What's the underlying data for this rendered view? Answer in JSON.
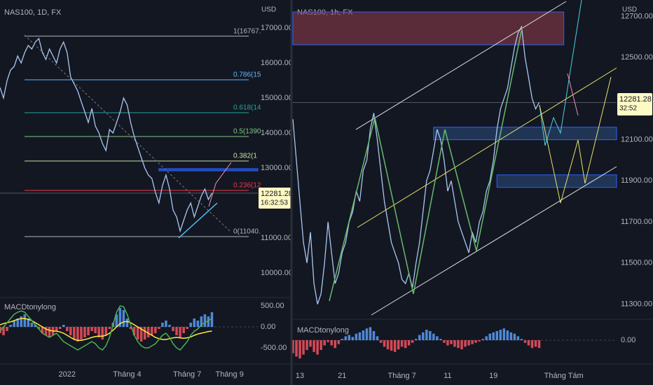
{
  "chart_data": [
    {
      "type": "line",
      "title": "NAS100, 1D, FX",
      "currency": "USD",
      "color": "#a9c7f0",
      "xlim": [
        0,
        73
      ],
      "xticks": [
        {
          "value": 19,
          "label": "2022"
        },
        {
          "value": 36,
          "label": "Tháng 4"
        },
        {
          "value": 53,
          "label": "Tháng 7"
        },
        {
          "value": 65,
          "label": "Tháng 9"
        }
      ],
      "ylim": [
        9300,
        17800
      ],
      "yticks": [
        {
          "value": 17000,
          "label": "17000.00"
        },
        {
          "value": 16000,
          "label": "16000.00"
        },
        {
          "value": 15000,
          "label": "15000.00"
        },
        {
          "value": 14000,
          "label": "14000.00"
        },
        {
          "value": 13000,
          "label": "13000.00"
        },
        {
          "value": 12000,
          "label": "12000.00"
        },
        {
          "value": 11000,
          "label": "11000.00"
        },
        {
          "value": 10000,
          "label": "10000.00"
        }
      ],
      "values": [
        15300,
        15000,
        15500,
        15800,
        15900,
        16200,
        16000,
        16300,
        16500,
        16400,
        16600,
        16700,
        16300,
        16100,
        16400,
        16200,
        16000,
        16400,
        16600,
        16300,
        15600,
        15400,
        15200,
        14900,
        14600,
        14300,
        14700,
        14200,
        14000,
        13700,
        13500,
        14100,
        14000,
        14300,
        14600,
        15000,
        14800,
        14300,
        13900,
        13600,
        13300,
        13000,
        12800,
        12700,
        12300,
        12000,
        12500,
        12800,
        12400,
        11800,
        11600,
        11200,
        11500,
        11800,
        12000,
        11600,
        11900,
        12200,
        12400,
        12100,
        12281.28
      ],
      "last_price": 12281.28,
      "countdown": "16:32:53",
      "fib_levels": [
        {
          "label": "1(16767.",
          "price": 16767,
          "color": "#b2b5be"
        },
        {
          "label": "0.786(15",
          "price": 15520,
          "color": "#64b5f6"
        },
        {
          "label": "0.618(14",
          "price": 14580,
          "color": "#26a69a"
        },
        {
          "label": "0.5(1390",
          "price": 13900,
          "color": "#81c784"
        },
        {
          "label": "0.382(1",
          "price": 13200,
          "color": "#c5e1a5"
        },
        {
          "label": "0.236(12",
          "price": 12360,
          "color": "#f23645"
        },
        {
          "label": "0(11040.",
          "price": 11040,
          "color": "#b2b5be"
        }
      ],
      "zones": [
        {
          "from": 12920,
          "to": 12980,
          "start": 45,
          "end": 73,
          "color": "#2962ff"
        }
      ],
      "macd": {
        "title": "MACDtonylong",
        "ylim": [
          -800,
          700
        ],
        "yticks": [
          {
            "value": 500,
            "label": "500.00"
          },
          {
            "value": 0,
            "label": "0.00"
          },
          {
            "value": -500,
            "label": "-500.00"
          }
        ],
        "up_color": "#5b9cf6",
        "down_color": "#f7525f",
        "histogram": [
          -150,
          -200,
          -100,
          50,
          150,
          200,
          250,
          300,
          200,
          100,
          50,
          -50,
          -150,
          -200,
          -250,
          -200,
          -100,
          -50,
          50,
          -100,
          -200,
          -300,
          -350,
          -300,
          -250,
          -200,
          -100,
          -150,
          -250,
          -300,
          -200,
          -50,
          100,
          300,
          450,
          400,
          200,
          -50,
          -200,
          -300,
          -350,
          -300,
          -250,
          -200,
          -150,
          -50,
          100,
          150,
          50,
          -100,
          -200,
          -250,
          -150,
          -50,
          100,
          200,
          150,
          250,
          300,
          250,
          350
        ],
        "series": [
          {
            "color": "#ffeb3b",
            "values": [
              50,
              80,
              100,
              120,
              150,
              180,
              200,
              200,
              180,
              150,
              100,
              50,
              0,
              -50,
              -80,
              -100,
              -100,
              -120,
              -150,
              -200,
              -250,
              -300,
              -320,
              -320,
              -300,
              -280,
              -250,
              -230,
              -220,
              -220,
              -200,
              -150,
              -80,
              0,
              80,
              120,
              130,
              100,
              50,
              0,
              -50,
              -100,
              -150,
              -200,
              -250,
              -280,
              -300,
              -300,
              -280,
              -260,
              -250,
              -260,
              -270,
              -260,
              -240,
              -200,
              -170,
              -150,
              -130,
              -110,
              -100
            ]
          },
          {
            "color": "#4caf50",
            "values": [
              -100,
              0,
              100,
              200,
              300,
              350,
              380,
              350,
              250,
              150,
              50,
              -50,
              -150,
              -200,
              -250,
              -200,
              -150,
              -250,
              -350,
              -400,
              -450,
              -500,
              -550,
              -500,
              -450,
              -400,
              -350,
              -400,
              -500,
              -550,
              -450,
              -250,
              50,
              350,
              500,
              480,
              300,
              50,
              -200,
              -350,
              -450,
              -500,
              -500,
              -450,
              -400,
              -300,
              -200,
              -150,
              -250,
              -400,
              -500,
              -550,
              -450,
              -350,
              -200,
              -100,
              -50,
              50,
              100,
              150,
              200
            ]
          }
        ]
      }
    },
    {
      "type": "line",
      "title": "NAS100, 1h, FX",
      "currency": "USD",
      "color": "#a9c7f0",
      "xlim": [
        0,
        92
      ],
      "xticks": [
        {
          "value": 2,
          "label": "13"
        },
        {
          "value": 14,
          "label": "21"
        },
        {
          "value": 31,
          "label": "Tháng 7"
        },
        {
          "value": 44,
          "label": "11"
        },
        {
          "value": 57,
          "label": "19"
        },
        {
          "value": 77,
          "label": "Tháng Tám"
        }
      ],
      "ylim": [
        11230,
        12780
      ],
      "yticks": [
        {
          "value": 12700,
          "label": "12700.00"
        },
        {
          "value": 12500,
          "label": "12500.00"
        },
        {
          "value": 12100,
          "label": "12100.00"
        },
        {
          "value": 11900,
          "label": "11900.00"
        },
        {
          "value": 11700,
          "label": "11700.00"
        },
        {
          "value": 11500,
          "label": "11500.00"
        },
        {
          "value": 11300,
          "label": "11300.00"
        }
      ],
      "values": [
        12200,
        12000,
        11800,
        11600,
        11500,
        11650,
        11400,
        11300,
        11350,
        11500,
        11700,
        11550,
        11400,
        11450,
        11550,
        11600,
        11700,
        11750,
        11850,
        11800,
        11950,
        12000,
        12150,
        12230,
        12100,
        11950,
        11800,
        11700,
        11600,
        11550,
        11500,
        11420,
        11400,
        11450,
        11380,
        11500,
        11600,
        11750,
        11900,
        11950,
        12050,
        12150,
        12100,
        12000,
        11850,
        11900,
        11800,
        11700,
        11650,
        11600,
        11550,
        11650,
        11600,
        11700,
        11750,
        11850,
        11900,
        12000,
        12150,
        12250,
        12300,
        12350,
        12450,
        12550,
        12620,
        12650,
        12500,
        12400,
        12300,
        12250,
        12281.28
      ],
      "last_price": 12281.28,
      "countdown": "32:52",
      "zones": [
        {
          "from": 12562,
          "to": 12722,
          "start": 0,
          "end": 77,
          "color": "#8b3a4a"
        },
        {
          "from": 12100,
          "to": 12161,
          "start": 40,
          "end": 92,
          "color": "#2a4a7a"
        },
        {
          "from": 11868,
          "to": 11929,
          "start": 58,
          "end": 92,
          "color": "#2a4a7a"
        }
      ],
      "macd": {
        "title": "MACDtonylong",
        "ylim": [
          -30,
          30
        ],
        "yticks": [
          {
            "value": 0,
            "label": "0.00"
          }
        ],
        "up_color": "#5b9cf6",
        "down_color": "#f7525f",
        "histogram": [
          -20,
          -25,
          -28,
          -22,
          -15,
          -10,
          -18,
          -22,
          -15,
          -8,
          -3,
          -8,
          -12,
          -6,
          2,
          6,
          8,
          5,
          10,
          12,
          15,
          18,
          20,
          14,
          6,
          -4,
          -10,
          -14,
          -16,
          -18,
          -14,
          -10,
          -12,
          -8,
          -4,
          2,
          8,
          12,
          16,
          14,
          10,
          6,
          2,
          -4,
          -8,
          -6,
          -10,
          -12,
          -14,
          -10,
          -8,
          -6,
          -4,
          -2,
          2,
          6,
          10,
          12,
          14,
          16,
          18,
          15,
          12,
          10,
          6,
          2,
          -4,
          -8,
          -12,
          -10,
          -12
        ],
        "series": []
      }
    }
  ]
}
